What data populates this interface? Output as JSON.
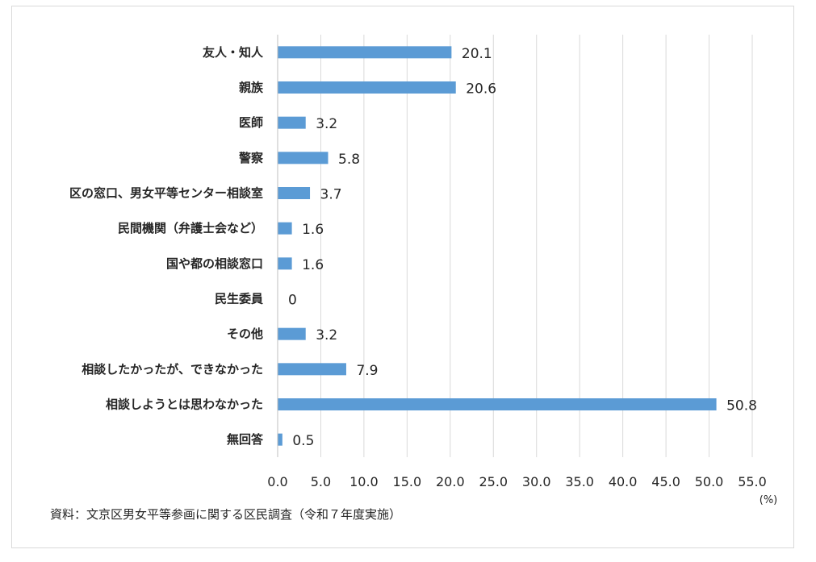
{
  "chart_data": {
    "type": "bar",
    "orientation": "horizontal",
    "categories": [
      "友人・知人",
      "親族",
      "医師",
      "警察",
      "区の窓口、男女平等センター相談室",
      "民間機関（弁護士会など）",
      "国や都の相談窓口",
      "民生委員",
      "その他",
      "相談したかったが、できなかった",
      "相談しようとは思わなかった",
      "無回答"
    ],
    "values": [
      20.1,
      20.6,
      3.2,
      5.8,
      3.7,
      1.6,
      1.6,
      0,
      3.2,
      7.9,
      50.8,
      0.5
    ],
    "value_labels": [
      "20.1",
      "20.6",
      "3.2",
      "5.8",
      "3.7",
      "1.6",
      "1.6",
      "0",
      "3.2",
      "7.9",
      "50.8",
      "0.5"
    ],
    "xlim": [
      0,
      55
    ],
    "xticks": [
      "0.0",
      "5.0",
      "10.0",
      "15.0",
      "20.0",
      "25.0",
      "30.0",
      "35.0",
      "40.0",
      "45.0",
      "50.0",
      "55.0"
    ],
    "unit_label": "(%)",
    "grid": true,
    "legend": "none",
    "bar_color": "#5b9bd5"
  },
  "source_note": "資料：文京区男女平等参画に関する区民調査（令和７年度実施）"
}
